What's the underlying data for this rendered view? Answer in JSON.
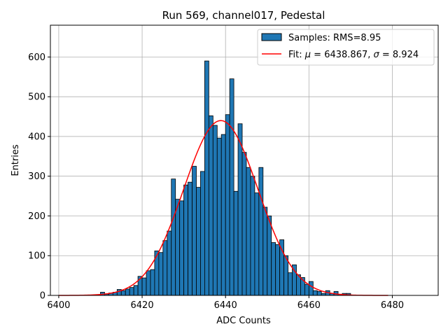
{
  "chart_data": {
    "type": "bar",
    "title": "Run 569, channel017, Pedestal",
    "xlabel": "ADC Counts",
    "ylabel": "Entries",
    "xlim": [
      6398,
      6491
    ],
    "ylim": [
      0,
      680
    ],
    "xticks": [
      6400,
      6420,
      6440,
      6460,
      6480
    ],
    "yticks": [
      0,
      100,
      200,
      300,
      400,
      500,
      600
    ],
    "grid": true,
    "legend_position": "top-right",
    "bin_width": 1,
    "series": [
      {
        "name": "Samples: RMS=8.95",
        "kind": "histogram",
        "color": "#1f77b4",
        "edgecolor": "#000000",
        "bins": [
          {
            "x": 6410,
            "y": 8
          },
          {
            "x": 6411,
            "y": 3
          },
          {
            "x": 6412,
            "y": 6
          },
          {
            "x": 6413,
            "y": 8
          },
          {
            "x": 6414,
            "y": 15
          },
          {
            "x": 6415,
            "y": 12
          },
          {
            "x": 6416,
            "y": 16
          },
          {
            "x": 6417,
            "y": 20
          },
          {
            "x": 6418,
            "y": 25
          },
          {
            "x": 6419,
            "y": 48
          },
          {
            "x": 6420,
            "y": 44
          },
          {
            "x": 6421,
            "y": 62
          },
          {
            "x": 6422,
            "y": 65
          },
          {
            "x": 6423,
            "y": 112
          },
          {
            "x": 6424,
            "y": 108
          },
          {
            "x": 6425,
            "y": 138
          },
          {
            "x": 6426,
            "y": 162
          },
          {
            "x": 6427,
            "y": 293
          },
          {
            "x": 6428,
            "y": 242
          },
          {
            "x": 6429,
            "y": 238
          },
          {
            "x": 6430,
            "y": 278
          },
          {
            "x": 6431,
            "y": 285
          },
          {
            "x": 6432,
            "y": 325
          },
          {
            "x": 6433,
            "y": 272
          },
          {
            "x": 6434,
            "y": 312
          },
          {
            "x": 6435,
            "y": 590
          },
          {
            "x": 6436,
            "y": 452
          },
          {
            "x": 6437,
            "y": 428
          },
          {
            "x": 6438,
            "y": 396
          },
          {
            "x": 6439,
            "y": 405
          },
          {
            "x": 6440,
            "y": 455
          },
          {
            "x": 6441,
            "y": 545
          },
          {
            "x": 6442,
            "y": 262
          },
          {
            "x": 6443,
            "y": 432
          },
          {
            "x": 6444,
            "y": 360
          },
          {
            "x": 6445,
            "y": 322
          },
          {
            "x": 6446,
            "y": 300
          },
          {
            "x": 6447,
            "y": 258
          },
          {
            "x": 6448,
            "y": 322
          },
          {
            "x": 6449,
            "y": 222
          },
          {
            "x": 6450,
            "y": 200
          },
          {
            "x": 6451,
            "y": 133
          },
          {
            "x": 6452,
            "y": 128
          },
          {
            "x": 6453,
            "y": 140
          },
          {
            "x": 6454,
            "y": 100
          },
          {
            "x": 6455,
            "y": 57
          },
          {
            "x": 6456,
            "y": 77
          },
          {
            "x": 6457,
            "y": 52
          },
          {
            "x": 6458,
            "y": 45
          },
          {
            "x": 6459,
            "y": 28
          },
          {
            "x": 6460,
            "y": 35
          },
          {
            "x": 6461,
            "y": 12
          },
          {
            "x": 6462,
            "y": 10
          },
          {
            "x": 6463,
            "y": 5
          },
          {
            "x": 6464,
            "y": 12
          },
          {
            "x": 6465,
            "y": 5
          },
          {
            "x": 6466,
            "y": 10
          },
          {
            "x": 6467,
            "y": 3
          },
          {
            "x": 6468,
            "y": 5
          },
          {
            "x": 6469,
            "y": 5
          }
        ]
      },
      {
        "name": "Fit: μ = 6438.867, σ = 8.924",
        "kind": "gaussian",
        "color": "#ff0000",
        "mu": 6438.867,
        "sigma": 8.924,
        "amplitude": 440,
        "x_range": [
          6400,
          6479
        ]
      }
    ]
  },
  "legend": {
    "samples_label": "Samples: RMS=8.95",
    "fit_prefix": "Fit: ",
    "mu_symbol": "μ",
    "mu_value": " = 6438.867, ",
    "sigma_symbol": "σ",
    "sigma_value": " = 8.924"
  }
}
